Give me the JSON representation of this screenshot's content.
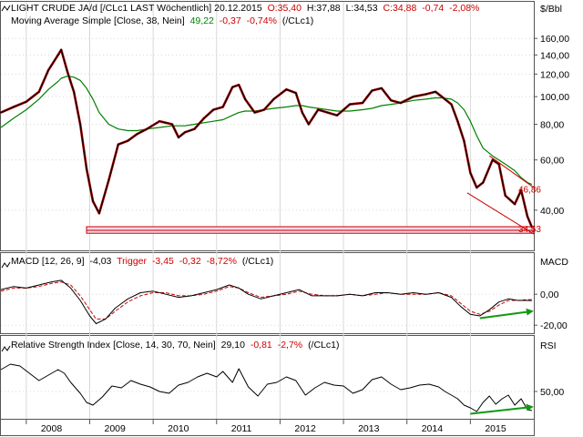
{
  "colors": {
    "price": "#000000",
    "price_alt": "#b00000",
    "sma": "#008000",
    "macd": "#000000",
    "trigger": "#cc0000",
    "rsi": "#000000",
    "support": "#cc0000",
    "arrow": "#119911",
    "value_red": "#cc0000",
    "value_green": "#008000",
    "grid": "#d8d8d8",
    "axis": "#555555"
  },
  "chart_data": [
    {
      "type": "line",
      "panel": "price",
      "title": {
        "name": "LIGHT CRUDE JA/d [/CLc1 LAST Wöchentlich] 20.12.2015",
        "open": "O:35,40",
        "high": "H:37,88",
        "low": "L:34,53",
        "close": "C:34,88",
        "change": "-0,74",
        "change_pct": "-2,08%"
      },
      "sma_legend": {
        "name": "Moving Average Simple [Close, 38, Nein]",
        "value": "49,22",
        "change": "-0,37",
        "change_pct": "-0,74%",
        "source": "(/CLc1)"
      },
      "unit": "$/Bbl",
      "scale": "log",
      "ylim": [
        30,
        175
      ],
      "y_ticks": [
        "40,00",
        "60,00",
        "80,00",
        "100,00",
        "120,00",
        "140,00",
        "160,00"
      ],
      "y_tick_values": [
        40,
        60,
        80,
        100,
        120,
        140,
        160
      ],
      "x": [
        2007.6,
        2007.8,
        2008.0,
        2008.2,
        2008.35,
        2008.5,
        2008.55,
        2008.65,
        2008.75,
        2008.85,
        2008.95,
        2009.05,
        2009.15,
        2009.3,
        2009.45,
        2009.6,
        2009.75,
        2009.9,
        2010.1,
        2010.3,
        2010.4,
        2010.5,
        2010.65,
        2010.8,
        2010.95,
        2011.1,
        2011.25,
        2011.35,
        2011.45,
        2011.6,
        2011.75,
        2011.9,
        2012.1,
        2012.25,
        2012.35,
        2012.45,
        2012.6,
        2012.75,
        2012.9,
        2013.1,
        2013.3,
        2013.45,
        2013.6,
        2013.75,
        2013.9,
        2014.1,
        2014.3,
        2014.45,
        2014.55,
        2014.7,
        2014.8,
        2014.9,
        2015.0,
        2015.1,
        2015.2,
        2015.35,
        2015.45,
        2015.55,
        2015.7,
        2015.8,
        2015.9,
        2015.97
      ],
      "close": [
        88,
        92,
        96,
        104,
        124,
        140,
        146,
        122,
        104,
        80,
        56,
        43,
        39,
        51,
        68,
        70,
        74,
        77,
        82,
        80,
        72,
        75,
        77,
        84,
        90,
        92,
        108,
        110,
        98,
        88,
        90,
        98,
        106,
        103,
        88,
        80,
        90,
        88,
        86,
        94,
        95,
        105,
        107,
        97,
        95,
        100,
        102,
        104,
        100,
        94,
        82,
        70,
        54,
        48,
        50,
        60,
        58,
        45,
        42,
        47,
        38,
        34.88
      ],
      "sma": [
        78,
        84,
        90,
        98,
        106,
        113,
        116,
        118,
        117,
        114,
        107,
        98,
        88,
        80,
        77,
        76,
        76,
        77,
        78,
        79,
        79,
        79,
        80,
        81,
        82,
        83,
        86,
        88,
        89,
        89,
        90,
        91,
        92,
        93,
        93,
        92,
        91,
        90,
        89,
        89,
        90,
        91,
        93,
        94,
        95,
        97,
        98,
        99,
        99,
        98,
        95,
        90,
        82,
        73,
        66,
        62,
        60,
        58,
        55,
        52,
        50,
        49.22
      ],
      "annotations": [
        {
          "text": "46,86",
          "x": 2015.87,
          "y": 47.5
        },
        {
          "text": "34,53",
          "x": 2015.87,
          "y": 34.5
        }
      ],
      "support_band": [
        33.2,
        35.0
      ],
      "support_from": 2008.95
    },
    {
      "type": "line",
      "panel": "macd",
      "legend": {
        "name": "MACD [12, 26, 9]",
        "value": "-4,03",
        "trigger_label": "Trigger",
        "trigger_value": "-3,45",
        "change": "-0,32",
        "change_pct": "-8,72%",
        "source": "(/CLc1)"
      },
      "panel_label": "MACD",
      "ylim": [
        -24,
        16
      ],
      "y_ticks": [
        "0,00",
        "-20,00"
      ],
      "y_tick_values": [
        0,
        -20
      ],
      "x": [
        2007.6,
        2007.8,
        2008.0,
        2008.2,
        2008.4,
        2008.55,
        2008.7,
        2008.85,
        2009.0,
        2009.1,
        2009.25,
        2009.4,
        2009.6,
        2009.8,
        2010.0,
        2010.2,
        2010.4,
        2010.6,
        2010.8,
        2011.0,
        2011.2,
        2011.35,
        2011.5,
        2011.7,
        2011.9,
        2012.1,
        2012.3,
        2012.5,
        2012.7,
        2012.9,
        2013.1,
        2013.3,
        2013.5,
        2013.7,
        2013.9,
        2014.1,
        2014.3,
        2014.5,
        2014.7,
        2014.85,
        2015.0,
        2015.15,
        2015.3,
        2015.45,
        2015.6,
        2015.75,
        2015.9,
        2015.97
      ],
      "macd": [
        3,
        5,
        4,
        6,
        8,
        9,
        4,
        -4,
        -14,
        -19,
        -16,
        -9,
        -3,
        1,
        2,
        0,
        -2,
        -1,
        1,
        3,
        6,
        4,
        0,
        -3,
        -1,
        1,
        3,
        -1,
        -1,
        -1,
        0,
        -1,
        1,
        1,
        0,
        1,
        0,
        1,
        -2,
        -8,
        -13,
        -14,
        -10,
        -5,
        -3,
        -4,
        -4,
        -4.03
      ],
      "trigger": [
        2,
        4,
        4,
        5,
        7,
        8,
        6,
        -1,
        -10,
        -16,
        -16,
        -11,
        -5,
        -1,
        1,
        1,
        -1,
        -1,
        0,
        2,
        5,
        4,
        1,
        -2,
        -1,
        0,
        2,
        0,
        -1,
        -1,
        0,
        -1,
        0,
        1,
        0,
        0,
        0,
        1,
        -1,
        -6,
        -11,
        -13,
        -11,
        -7,
        -4,
        -4,
        -3.5,
        -3.45
      ]
    },
    {
      "type": "line",
      "panel": "rsi",
      "legend": {
        "name": "Relative Strength Index [Close, 14, 30, 70, Nein]",
        "value": "29,10",
        "change": "-0,81",
        "change_pct": "-2,7%",
        "source": "(/CLc1)"
      },
      "panel_label": "RSI",
      "ylim": [
        22,
        92
      ],
      "y_ticks": [
        "50,00"
      ],
      "y_tick_values": [
        50
      ],
      "x": [
        2007.6,
        2007.75,
        2007.9,
        2008.05,
        2008.2,
        2008.35,
        2008.5,
        2008.6,
        2008.7,
        2008.85,
        2008.95,
        2009.05,
        2009.2,
        2009.35,
        2009.5,
        2009.65,
        2009.8,
        2009.95,
        2010.1,
        2010.25,
        2010.4,
        2010.55,
        2010.7,
        2010.85,
        2011.0,
        2011.1,
        2011.25,
        2011.35,
        2011.5,
        2011.65,
        2011.8,
        2011.95,
        2012.1,
        2012.25,
        2012.4,
        2012.55,
        2012.7,
        2012.85,
        2013.0,
        2013.15,
        2013.3,
        2013.45,
        2013.6,
        2013.75,
        2013.9,
        2014.05,
        2014.2,
        2014.35,
        2014.5,
        2014.6,
        2014.7,
        2014.8,
        2014.9,
        2015.0,
        2015.1,
        2015.2,
        2015.3,
        2015.4,
        2015.5,
        2015.6,
        2015.7,
        2015.8,
        2015.9,
        2015.97
      ],
      "rsi": [
        74,
        80,
        78,
        70,
        62,
        68,
        74,
        70,
        60,
        48,
        38,
        35,
        44,
        56,
        54,
        62,
        58,
        55,
        50,
        48,
        57,
        60,
        66,
        70,
        66,
        72,
        60,
        75,
        55,
        45,
        58,
        60,
        66,
        62,
        46,
        54,
        60,
        57,
        56,
        48,
        52,
        63,
        66,
        58,
        52,
        54,
        57,
        58,
        55,
        50,
        46,
        42,
        35,
        32,
        28,
        38,
        45,
        36,
        42,
        46,
        35,
        42,
        30,
        29.1
      ]
    }
  ],
  "x_axis": {
    "year_labels": [
      "2008",
      "2009",
      "2010",
      "2011",
      "2012",
      "2013",
      "2014",
      "2015"
    ],
    "year_values": [
      2008,
      2009,
      2010,
      2011,
      2012,
      2013,
      2014,
      2015
    ],
    "range": [
      2007.6,
      2016.0
    ]
  },
  "support_line": {
    "from": [
      2008.95,
      34.0
    ],
    "to": [
      2016.0,
      34.0
    ]
  },
  "trend_lines": [
    {
      "from": [
        2015.3,
        62
      ],
      "to": [
        2016.0,
        48
      ]
    },
    {
      "from": [
        2014.95,
        46
      ],
      "to": [
        2016.0,
        33
      ]
    }
  ],
  "divergence_arrows": [
    {
      "panel": "macd",
      "from": [
        2015.15,
        -15.5
      ],
      "to": [
        2015.97,
        -11
      ]
    },
    {
      "panel": "rsi",
      "from": [
        2015.0,
        25.5
      ],
      "to": [
        2015.97,
        33
      ]
    }
  ]
}
